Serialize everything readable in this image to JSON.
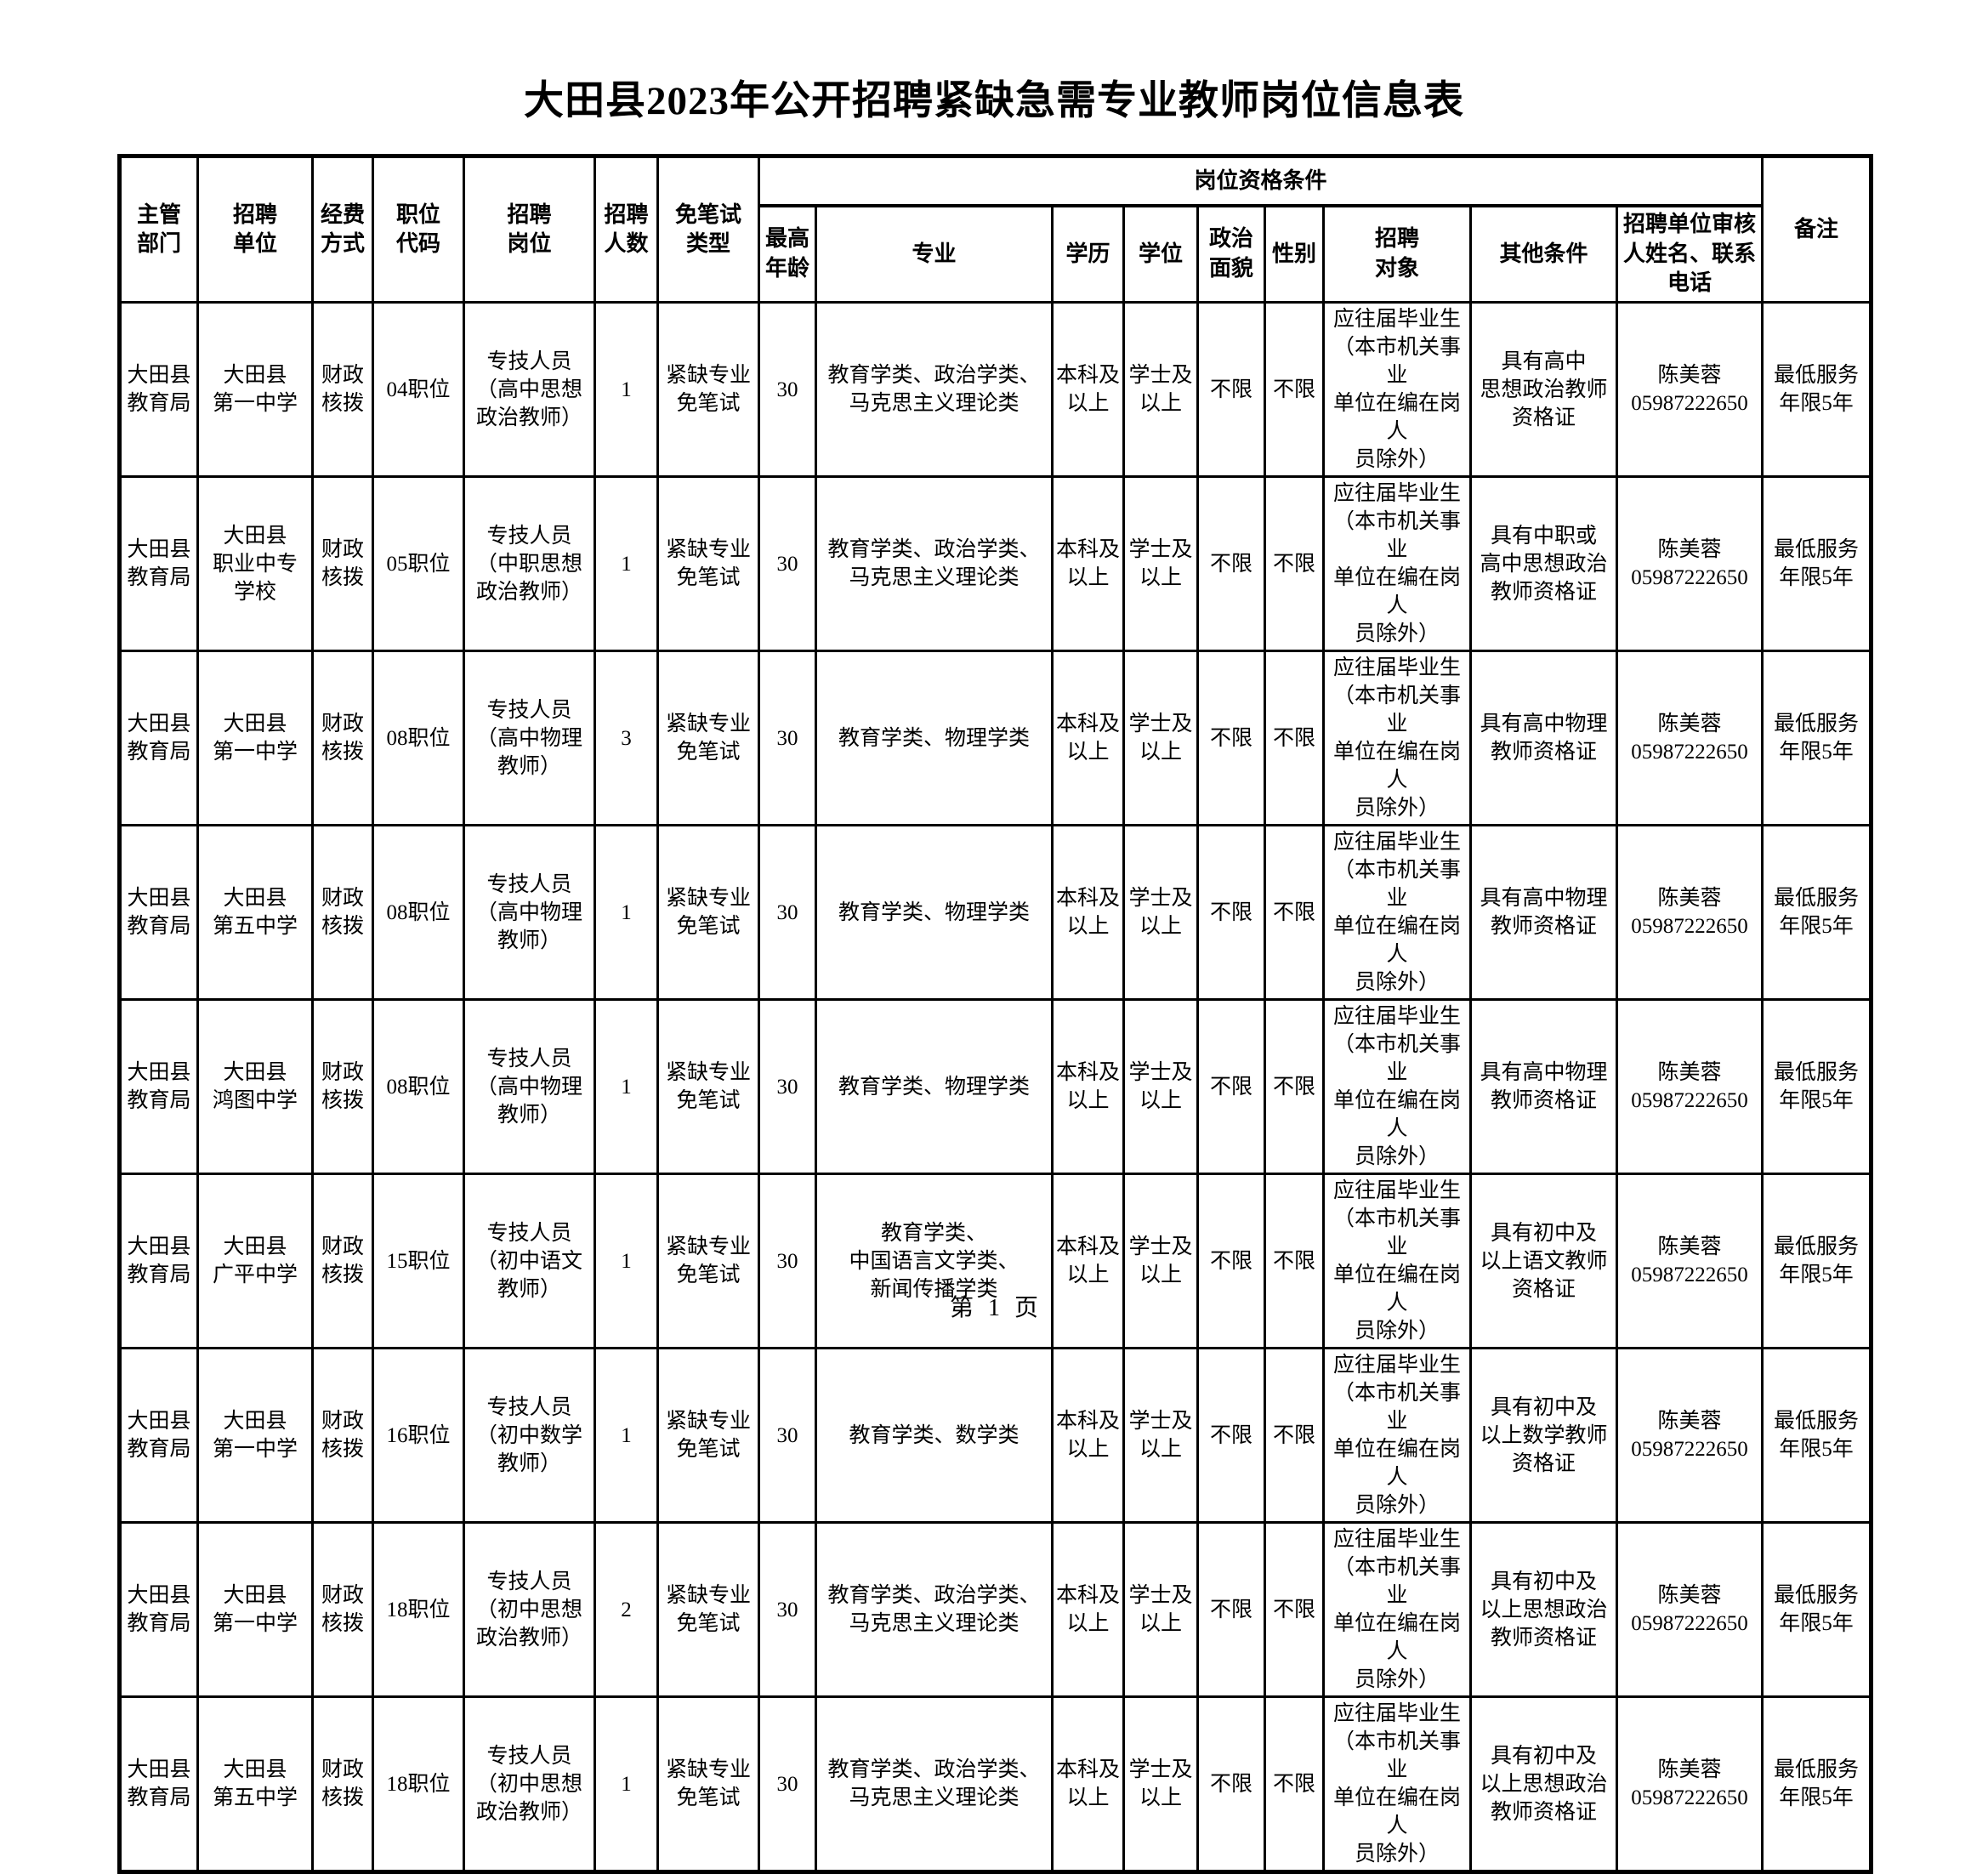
{
  "page": {
    "title": "大田县2023年公开招聘紧缺急需专业教师岗位信息表",
    "footer": "第 1 页"
  },
  "table": {
    "group_header": "岗位资格条件",
    "columns": [
      "主管\n部门",
      "招聘\n单位",
      "经费\n方式",
      "职位\n代码",
      "招聘\n岗位",
      "招聘\n人数",
      "免笔试\n类型",
      "最高\n年龄",
      "专业",
      "学历",
      "学位",
      "政治\n面貌",
      "性别",
      "招聘\n对象",
      "其他条件",
      "招聘单位审核\n人姓名、联系\n电话",
      "备注"
    ],
    "rows": [
      [
        "大田县\n教育局",
        "大田县\n第一中学",
        "财政\n核拨",
        "04职位",
        "专技人员\n（高中思想\n政治教师）",
        "1",
        "紧缺专业\n免笔试",
        "30",
        "教育学类、政治学类、\n马克思主义理论类",
        "本科及\n以上",
        "学士及\n以上",
        "不限",
        "不限",
        "应往届毕业生\n（本市机关事业\n单位在编在岗人\n员除外）",
        "具有高中\n思想政治教师\n资格证",
        "陈美蓉\n05987222650",
        "最低服务\n年限5年"
      ],
      [
        "大田县\n教育局",
        "大田县\n职业中专\n学校",
        "财政\n核拨",
        "05职位",
        "专技人员\n（中职思想\n政治教师）",
        "1",
        "紧缺专业\n免笔试",
        "30",
        "教育学类、政治学类、\n马克思主义理论类",
        "本科及\n以上",
        "学士及\n以上",
        "不限",
        "不限",
        "应往届毕业生\n（本市机关事业\n单位在编在岗人\n员除外）",
        "具有中职或\n高中思想政治\n教师资格证",
        "陈美蓉\n05987222650",
        "最低服务\n年限5年"
      ],
      [
        "大田县\n教育局",
        "大田县\n第一中学",
        "财政\n核拨",
        "08职位",
        "专技人员\n（高中物理\n教师）",
        "3",
        "紧缺专业\n免笔试",
        "30",
        "教育学类、物理学类",
        "本科及\n以上",
        "学士及\n以上",
        "不限",
        "不限",
        "应往届毕业生\n（本市机关事业\n单位在编在岗人\n员除外）",
        "具有高中物理\n教师资格证",
        "陈美蓉\n05987222650",
        "最低服务\n年限5年"
      ],
      [
        "大田县\n教育局",
        "大田县\n第五中学",
        "财政\n核拨",
        "08职位",
        "专技人员\n（高中物理\n教师）",
        "1",
        "紧缺专业\n免笔试",
        "30",
        "教育学类、物理学类",
        "本科及\n以上",
        "学士及\n以上",
        "不限",
        "不限",
        "应往届毕业生\n（本市机关事业\n单位在编在岗人\n员除外）",
        "具有高中物理\n教师资格证",
        "陈美蓉\n05987222650",
        "最低服务\n年限5年"
      ],
      [
        "大田县\n教育局",
        "大田县\n鸿图中学",
        "财政\n核拨",
        "08职位",
        "专技人员\n（高中物理\n教师）",
        "1",
        "紧缺专业\n免笔试",
        "30",
        "教育学类、物理学类",
        "本科及\n以上",
        "学士及\n以上",
        "不限",
        "不限",
        "应往届毕业生\n（本市机关事业\n单位在编在岗人\n员除外）",
        "具有高中物理\n教师资格证",
        "陈美蓉\n05987222650",
        "最低服务\n年限5年"
      ],
      [
        "大田县\n教育局",
        "大田县\n广平中学",
        "财政\n核拨",
        "15职位",
        "专技人员\n（初中语文\n教师）",
        "1",
        "紧缺专业\n免笔试",
        "30",
        "教育学类、\n中国语言文学类、\n新闻传播学类",
        "本科及\n以上",
        "学士及\n以上",
        "不限",
        "不限",
        "应往届毕业生\n（本市机关事业\n单位在编在岗人\n员除外）",
        "具有初中及\n以上语文教师\n资格证",
        "陈美蓉\n05987222650",
        "最低服务\n年限5年"
      ],
      [
        "大田县\n教育局",
        "大田县\n第一中学",
        "财政\n核拨",
        "16职位",
        "专技人员\n（初中数学\n教师）",
        "1",
        "紧缺专业\n免笔试",
        "30",
        "教育学类、数学类",
        "本科及\n以上",
        "学士及\n以上",
        "不限",
        "不限",
        "应往届毕业生\n（本市机关事业\n单位在编在岗人\n员除外）",
        "具有初中及\n以上数学教师\n资格证",
        "陈美蓉\n05987222650",
        "最低服务\n年限5年"
      ],
      [
        "大田县\n教育局",
        "大田县\n第一中学",
        "财政\n核拨",
        "18职位",
        "专技人员\n（初中思想\n政治教师）",
        "2",
        "紧缺专业\n免笔试",
        "30",
        "教育学类、政治学类、\n马克思主义理论类",
        "本科及\n以上",
        "学士及\n以上",
        "不限",
        "不限",
        "应往届毕业生\n（本市机关事业\n单位在编在岗人\n员除外）",
        "具有初中及\n以上思想政治\n教师资格证",
        "陈美蓉\n05987222650",
        "最低服务\n年限5年"
      ],
      [
        "大田县\n教育局",
        "大田县\n第五中学",
        "财政\n核拨",
        "18职位",
        "专技人员\n（初中思想\n政治教师）",
        "1",
        "紧缺专业\n免笔试",
        "30",
        "教育学类、政治学类、\n马克思主义理论类",
        "本科及\n以上",
        "学士及\n以上",
        "不限",
        "不限",
        "应往届毕业生\n（本市机关事业\n单位在编在岗人\n员除外）",
        "具有初中及\n以上思想政治\n教师资格证",
        "陈美蓉\n05987222650",
        "最低服务\n年限5年"
      ]
    ]
  }
}
